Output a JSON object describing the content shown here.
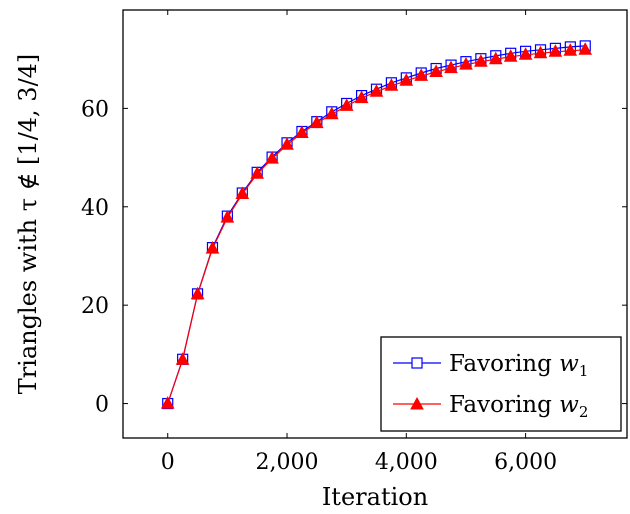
{
  "chart_data": {
    "type": "line",
    "title": "",
    "xlabel": "Iteration",
    "ylabel": "Triangles with τ ∉ [1/4, 3/4]",
    "xlim": [
      -750,
      7700
    ],
    "ylim": [
      -7,
      80
    ],
    "x_ticks": [
      0,
      2000,
      4000,
      6000
    ],
    "x_tick_labels": [
      "0",
      "2,000",
      "4,000",
      "6,000"
    ],
    "y_ticks": [
      0,
      20,
      40,
      60
    ],
    "y_tick_labels": [
      "0",
      "20",
      "40",
      "60"
    ],
    "grid": false,
    "legend_position": "bottom-right",
    "x": [
      0,
      250,
      500,
      750,
      1000,
      1250,
      1500,
      1750,
      2000,
      2250,
      2500,
      2750,
      3000,
      3250,
      3500,
      3750,
      4000,
      4250,
      4500,
      4750,
      5000,
      5250,
      5500,
      5750,
      6000,
      6250,
      6500,
      6750,
      7000
    ],
    "series": [
      {
        "name": "Favoring w1",
        "label_main": "Favoring ",
        "label_var": "w",
        "label_sub": "1",
        "color": "#0000ff",
        "marker": "square",
        "values": [
          0,
          9,
          22.3,
          31.7,
          38.1,
          42.8,
          47,
          50.1,
          53,
          55.3,
          57.3,
          59.3,
          61,
          62.6,
          63.9,
          65.2,
          66.2,
          67.2,
          68.1,
          68.8,
          69.5,
          70.1,
          70.7,
          71.2,
          71.6,
          71.9,
          72.2,
          72.5,
          72.7
        ]
      },
      {
        "name": "Favoring w2",
        "label_main": "Favoring ",
        "label_var": "w",
        "label_sub": "2",
        "color": "#ff0000",
        "marker": "triangle",
        "values": [
          0,
          8.9,
          22.2,
          31.5,
          37.8,
          42.6,
          46.7,
          49.8,
          52.6,
          55,
          57,
          58.8,
          60.5,
          62.1,
          63.4,
          64.6,
          65.6,
          66.6,
          67.4,
          68.2,
          68.9,
          69.5,
          70,
          70.5,
          70.9,
          71.2,
          71.5,
          71.7,
          71.9
        ]
      }
    ]
  }
}
